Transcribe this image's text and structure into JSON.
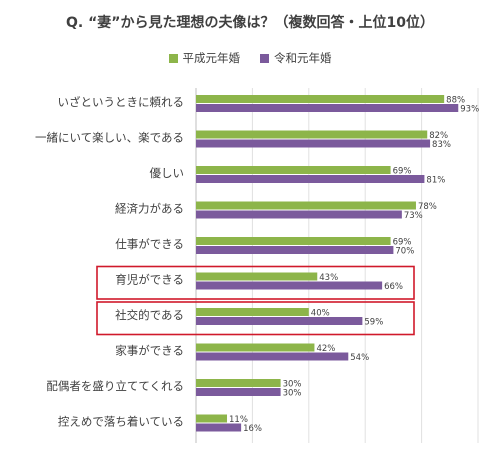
{
  "chart_data": {
    "type": "bar",
    "orientation": "horizontal",
    "title": "Q. “妻”から見た理想の夫像は？（複数回答・上位10位）",
    "categories": [
      "いざというときに頼れる",
      "一緒にいて楽しい、楽である",
      "優しい",
      "経済力がある",
      "仕事ができる",
      "育児ができる",
      "社交的である",
      "家事ができる",
      "配偶者を盛り立ててくれる",
      "控えめで落ち着いている"
    ],
    "series": [
      {
        "name": "平成元年婚",
        "color": "#8db54a",
        "values": [
          88,
          82,
          69,
          78,
          69,
          43,
          40,
          42,
          30,
          11
        ]
      },
      {
        "name": "令和元年婚",
        "color": "#7b5a9c",
        "values": [
          93,
          83,
          81,
          73,
          70,
          66,
          59,
          54,
          30,
          16
        ]
      }
    ],
    "value_suffix": "%",
    "xlim": [
      0,
      100
    ],
    "grid": true,
    "legend": "top-center",
    "highlighted_categories": [
      "育児ができる",
      "社交的である"
    ],
    "highlight_color": "#d0192b"
  }
}
